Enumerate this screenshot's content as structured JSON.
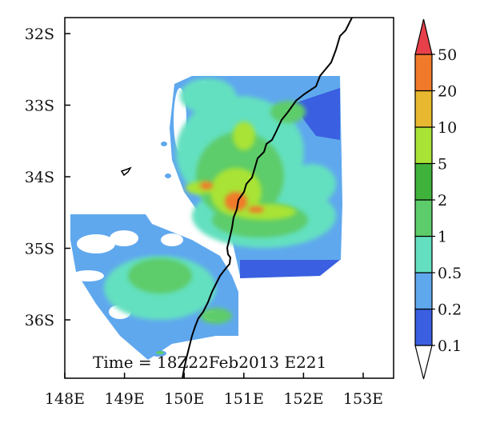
{
  "annotation": "Time = 18Z22Feb2013 E221",
  "x_ticks": [
    "148E",
    "149E",
    "150E",
    "151E",
    "152E",
    "153E"
  ],
  "y_ticks": [
    "32S",
    "33S",
    "34S",
    "35S",
    "36S"
  ],
  "colorbar": {
    "labels": [
      "0.1",
      "0.2",
      "0.5",
      "1",
      "2",
      "5",
      "10",
      "20",
      "50"
    ],
    "colors": [
      "#ffffff",
      "#3a5fe0",
      "#5fa8ee",
      "#64e0c0",
      "#5dcc6a",
      "#3fb23c",
      "#a9e336",
      "#e8b830",
      "#f07a2a",
      "#e8404a"
    ]
  },
  "chart_data": {
    "type": "heatmap",
    "title": "",
    "xlabel": "",
    "ylabel": "",
    "xlim": [
      148,
      153.5
    ],
    "ylim": [
      -36.8,
      -31.8
    ],
    "legend_placement": "right colorbar",
    "annotation": "Time = 18Z22Feb2013 E221"
  }
}
